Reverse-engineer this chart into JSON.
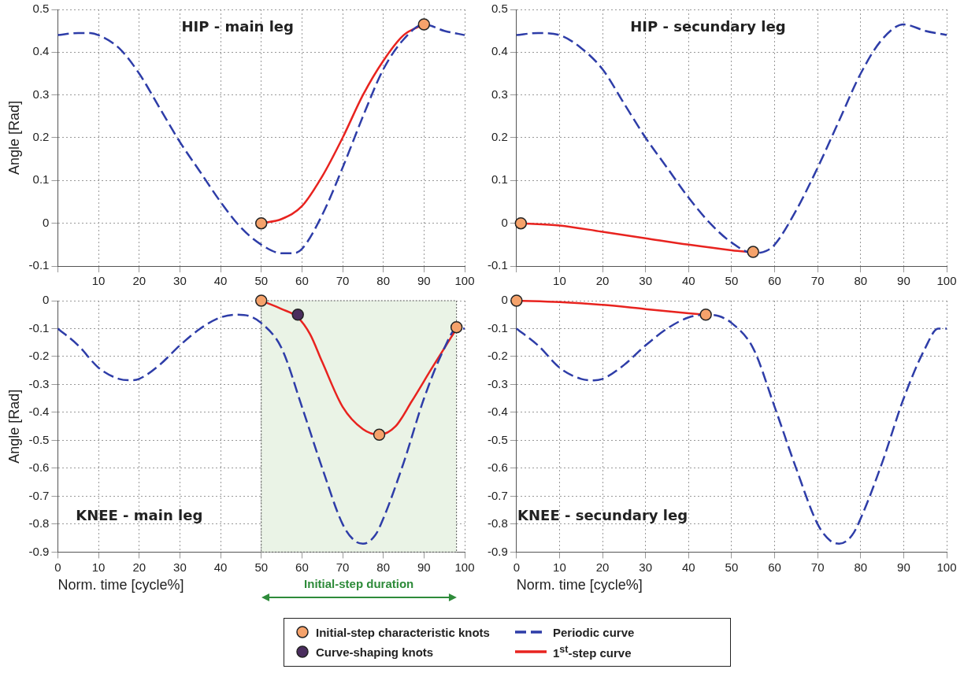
{
  "chart_data": [
    {
      "type": "line",
      "title": "HIP - main leg",
      "ylabel": "Angle [Rad]",
      "xlim": [
        0,
        100
      ],
      "ylim": [
        -0.1,
        0.5
      ],
      "xticks": [
        {
          "value": 0,
          "label": null
        },
        10,
        20,
        30,
        40,
        50,
        60,
        70,
        80,
        90,
        100
      ],
      "yticks": [
        -0.1,
        0,
        0.1,
        0.2,
        0.3,
        0.4,
        0.5
      ],
      "grid": true,
      "series": [
        {
          "marker": "none",
          "color": "#2e3da8",
          "line_style": "dashed",
          "x": [
            0,
            5,
            8,
            10,
            15,
            20,
            25,
            30,
            35,
            40,
            45,
            50,
            55,
            58,
            60,
            65,
            70,
            75,
            80,
            85,
            90,
            95,
            100
          ],
          "values": [
            0.44,
            0.445,
            0.445,
            0.44,
            0.41,
            0.35,
            0.27,
            0.19,
            0.12,
            0.05,
            -0.01,
            -0.05,
            -0.07,
            -0.07,
            -0.06,
            0.02,
            0.13,
            0.25,
            0.36,
            0.43,
            0.465,
            0.45,
            0.44
          ]
        },
        {
          "marker": "none",
          "color": "#e8231f",
          "line_style": "solid",
          "x": [
            50,
            55,
            60,
            65,
            70,
            75,
            80,
            85,
            90
          ],
          "values": [
            0,
            0.01,
            0.04,
            0.11,
            0.2,
            0.3,
            0.38,
            0.44,
            0.465
          ]
        },
        {
          "type": "scatter",
          "marker": "circle",
          "color": "#f5a26b",
          "x": [
            50,
            90
          ],
          "values": [
            0,
            0.465
          ]
        }
      ]
    },
    {
      "type": "line",
      "title": "HIP - secundary leg",
      "xlim": [
        0,
        100
      ],
      "ylim": [
        -0.1,
        0.5
      ],
      "xticks": [
        {
          "value": 0,
          "label": null
        },
        10,
        20,
        30,
        40,
        50,
        60,
        70,
        80,
        90,
        100
      ],
      "yticks": [
        -0.1,
        0,
        0.1,
        0.2,
        0.3,
        0.4,
        0.5
      ],
      "grid": true,
      "series": [
        {
          "marker": "none",
          "color": "#2e3da8",
          "line_style": "dashed",
          "x": [
            0,
            5,
            10,
            15,
            20,
            25,
            30,
            35,
            40,
            45,
            50,
            55,
            58,
            60,
            65,
            70,
            75,
            80,
            85,
            90,
            95,
            100
          ],
          "values": [
            0.44,
            0.445,
            0.44,
            0.41,
            0.36,
            0.28,
            0.2,
            0.13,
            0.06,
            0,
            -0.045,
            -0.07,
            -0.065,
            -0.05,
            0.03,
            0.13,
            0.24,
            0.35,
            0.43,
            0.465,
            0.45,
            0.44
          ]
        },
        {
          "marker": "none",
          "color": "#e8231f",
          "line_style": "solid",
          "x": [
            1,
            10,
            20,
            30,
            40,
            50,
            55
          ],
          "values": [
            0,
            -0.005,
            -0.02,
            -0.035,
            -0.05,
            -0.063,
            -0.068
          ]
        },
        {
          "type": "scatter",
          "marker": "circle",
          "color": "#f5a26b",
          "x": [
            1,
            55
          ],
          "values": [
            0,
            -0.067
          ]
        }
      ]
    },
    {
      "type": "line",
      "title": "KNEE - main leg",
      "xlabel": "Norm. time [cycle%]",
      "ylabel": "Angle [Rad]",
      "xlim": [
        0,
        100
      ],
      "ylim": [
        -0.9,
        0
      ],
      "xticks": [
        0,
        10,
        20,
        30,
        40,
        50,
        60,
        70,
        80,
        90,
        100
      ],
      "yticks": [
        -0.9,
        -0.8,
        -0.7,
        -0.6,
        -0.5,
        -0.4,
        -0.3,
        -0.2,
        -0.1,
        0
      ],
      "grid": true,
      "legend": "bottom",
      "bands": [
        {
          "axis": "x",
          "from": 50,
          "to": 98,
          "label": "Initial-step duration",
          "color": "#eaf3e6"
        }
      ],
      "series": [
        {
          "type": "scatter",
          "marker": "circle",
          "name": "Initial-step characteristic knots",
          "color": "#f5a26b",
          "x": [
            50,
            79,
            98
          ],
          "values": [
            0,
            -0.48,
            -0.095
          ]
        },
        {
          "type": "scatter",
          "marker": "circle",
          "name": "Curve-shaping knots",
          "color": "#4a2d5e",
          "x": [
            59
          ],
          "values": [
            -0.05
          ]
        },
        {
          "marker": "none",
          "name": "Periodic curve",
          "color": "#2e3da8",
          "line_style": "dashed",
          "x": [
            0,
            5,
            10,
            15,
            18,
            20,
            25,
            30,
            35,
            40,
            44,
            47,
            50,
            55,
            60,
            65,
            70,
            73,
            75,
            78,
            80,
            85,
            90,
            95,
            98,
            100
          ],
          "values": [
            -0.1,
            -0.16,
            -0.24,
            -0.28,
            -0.285,
            -0.28,
            -0.23,
            -0.16,
            -0.1,
            -0.06,
            -0.05,
            -0.055,
            -0.08,
            -0.17,
            -0.38,
            -0.6,
            -0.8,
            -0.86,
            -0.87,
            -0.84,
            -0.78,
            -0.58,
            -0.35,
            -0.17,
            -0.1,
            -0.1
          ]
        },
        {
          "marker": "none",
          "name": "1$^{st}$-step curve",
          "color": "#e8231f",
          "line_style": "solid",
          "x": [
            50,
            55,
            59,
            62,
            65,
            70,
            75,
            79,
            83,
            87,
            92,
            95,
            98
          ],
          "values": [
            0,
            -0.03,
            -0.06,
            -0.12,
            -0.22,
            -0.38,
            -0.46,
            -0.48,
            -0.45,
            -0.36,
            -0.24,
            -0.17,
            -0.1
          ]
        }
      ]
    },
    {
      "type": "line",
      "title": "KNEE - secundary leg",
      "xlabel": "Norm. time [cycle%]",
      "xlim": [
        0,
        100
      ],
      "ylim": [
        -0.9,
        0
      ],
      "xticks": [
        0,
        10,
        20,
        30,
        40,
        50,
        60,
        70,
        80,
        90,
        100
      ],
      "yticks": [
        -0.9,
        -0.8,
        -0.7,
        -0.6,
        -0.5,
        -0.4,
        -0.3,
        -0.2,
        -0.1,
        0
      ],
      "grid": true,
      "series": [
        {
          "marker": "none",
          "color": "#2e3da8",
          "line_style": "dashed",
          "x": [
            0,
            5,
            10,
            15,
            18,
            20,
            25,
            30,
            35,
            40,
            44,
            47,
            50,
            55,
            60,
            65,
            70,
            73,
            75,
            78,
            80,
            85,
            90,
            95,
            98,
            100
          ],
          "values": [
            -0.1,
            -0.16,
            -0.24,
            -0.28,
            -0.285,
            -0.28,
            -0.23,
            -0.16,
            -0.1,
            -0.06,
            -0.05,
            -0.055,
            -0.08,
            -0.17,
            -0.38,
            -0.6,
            -0.8,
            -0.86,
            -0.87,
            -0.84,
            -0.78,
            -0.58,
            -0.35,
            -0.17,
            -0.1,
            -0.1
          ]
        },
        {
          "marker": "none",
          "color": "#e8231f",
          "line_style": "solid",
          "x": [
            0,
            10,
            20,
            30,
            40,
            44
          ],
          "values": [
            0,
            -0.005,
            -0.015,
            -0.03,
            -0.045,
            -0.05
          ]
        },
        {
          "type": "scatter",
          "marker": "circle",
          "color": "#f5a26b",
          "x": [
            0,
            44
          ],
          "values": [
            0,
            -0.05
          ]
        }
      ]
    }
  ]
}
